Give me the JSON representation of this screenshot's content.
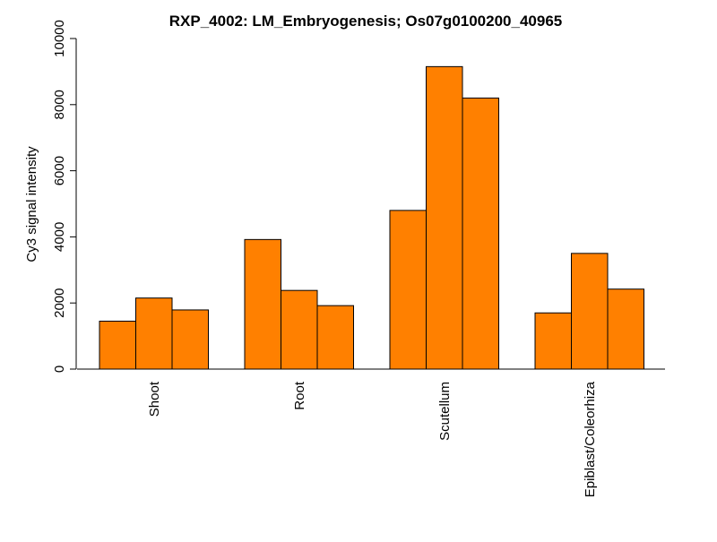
{
  "chart_data": {
    "type": "bar",
    "title": "RXP_4002: LM_Embryogenesis; Os07g0100200_40965",
    "xlabel": "",
    "ylabel": "Cy3 signal intensity",
    "ylim": [
      0,
      10000
    ],
    "yticks": [
      0,
      2000,
      4000,
      6000,
      8000,
      10000
    ],
    "categories": [
      "Shoot",
      "Root",
      "Scutellum",
      "Epiblast/Coleorhiza"
    ],
    "bars_per_category": 3,
    "values": [
      [
        1450,
        2150,
        1790
      ],
      [
        3920,
        2380,
        1920
      ],
      [
        4800,
        9150,
        8200
      ],
      [
        1700,
        3500,
        2420
      ]
    ],
    "bar_color": "#FF8000",
    "bar_stroke": "#000000",
    "grid": false,
    "legend": "none"
  }
}
